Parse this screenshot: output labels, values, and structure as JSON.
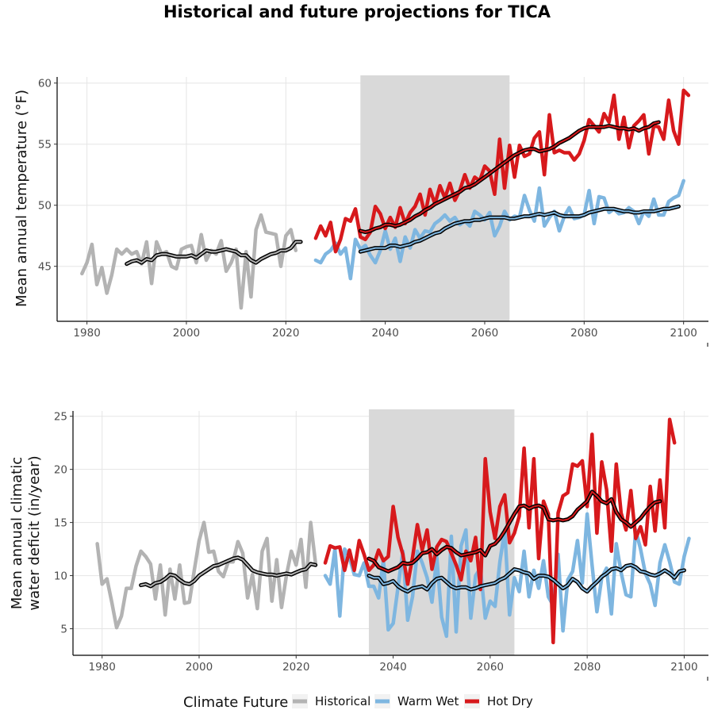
{
  "title": "Historical and future projections for TICA",
  "legend": {
    "title": "Climate Future",
    "items": [
      {
        "label": "Historical",
        "color": "#b3b3b3"
      },
      {
        "label": "Warm Wet",
        "color": "#7eb6e0"
      },
      {
        "label": "Hot Dry",
        "color": "#d7191c"
      }
    ]
  },
  "colors": {
    "historical": "#b3b3b3",
    "warm_wet": "#7eb6e0",
    "hot_dry": "#d7191c",
    "smooth_outline": "#000000",
    "shaded_period": "#d9d9d9",
    "grid": "#e5e5e5"
  },
  "chart_data": [
    {
      "type": "line",
      "ylabel": "Mean annual temperature (°F)",
      "xlabel": "",
      "xlim": [
        1974,
        2105
      ],
      "ylim": [
        40.5,
        60.5
      ],
      "xticks": [
        1980,
        2000,
        2020,
        2040,
        2060,
        2080,
        2100
      ],
      "yticks": [
        45,
        50,
        55,
        60
      ],
      "shaded_period": [
        2035,
        2065
      ],
      "grid": true,
      "legend_position": "bottom",
      "series": [
        {
          "name": "Historical",
          "x_start": 1979,
          "values": [
            44.4,
            45.3,
            46.8,
            43.5,
            44.9,
            42.8,
            44.3,
            46.4,
            46.0,
            46.4,
            46.0,
            46.2,
            45.2,
            47.0,
            43.6,
            47.0,
            46.0,
            46.2,
            45.0,
            44.8,
            46.4,
            46.6,
            46.7,
            45.3,
            47.6,
            45.5,
            46.3,
            46.0,
            47.1,
            44.6,
            45.3,
            46.4,
            41.6,
            46.2,
            42.5,
            48.0,
            49.2,
            47.8,
            47.7,
            47.6,
            45.0,
            47.5,
            48.0,
            46.3
          ]
        },
        {
          "name": "Historical 10-yr mean",
          "x_start": 1988,
          "values": [
            45.2,
            45.4,
            45.5,
            45.3,
            45.6,
            45.5,
            45.9,
            46.0,
            46.0,
            45.9,
            45.8,
            45.8,
            45.8,
            45.9,
            45.7,
            46.0,
            46.3,
            46.2,
            46.2,
            46.3,
            46.4,
            46.3,
            46.2,
            45.9,
            45.9,
            45.5,
            45.3,
            45.6,
            45.8,
            46.0,
            46.1,
            46.3,
            46.3,
            46.5,
            47.0,
            47.0
          ]
        },
        {
          "name": "Warm Wet",
          "x_start": 2026,
          "values": [
            45.5,
            45.3,
            46.0,
            46.3,
            46.9,
            46.0,
            46.5,
            44.0,
            47.2,
            46.4,
            46.7,
            45.9,
            45.3,
            46.3,
            47.9,
            46.4,
            47.3,
            45.4,
            47.4,
            46.5,
            48.0,
            47.3,
            47.9,
            47.8,
            48.5,
            48.8,
            49.2,
            48.7,
            49.0,
            48.4,
            48.7,
            48.3,
            49.5,
            49.2,
            48.8,
            49.4,
            47.5,
            48.3,
            49.5,
            48.8,
            49.1,
            49.0,
            50.8,
            49.6,
            48.7,
            51.4,
            48.3,
            49.0,
            49.5,
            47.9,
            49.1,
            49.8,
            48.9,
            49.0,
            49.2,
            51.2,
            48.5,
            50.7,
            50.6,
            49.4,
            49.7,
            49.3,
            49.4,
            49.8,
            49.5,
            48.5,
            49.5,
            49.1,
            50.5,
            49.2,
            49.2,
            50.3,
            50.6,
            50.8,
            52.0
          ]
        },
        {
          "name": "Hot Dry",
          "x_start": 2026,
          "values": [
            47.3,
            48.3,
            47.5,
            48.6,
            46.2,
            47.2,
            48.9,
            48.7,
            49.7,
            47.4,
            47.2,
            47.8,
            49.9,
            49.3,
            48.1,
            49.0,
            48.2,
            49.8,
            48.5,
            49.4,
            49.9,
            50.9,
            49.2,
            51.3,
            50.1,
            51.6,
            50.6,
            51.8,
            50.4,
            51.2,
            52.5,
            51.4,
            52.3,
            52.0,
            53.2,
            52.8,
            50.9,
            55.4,
            51.4,
            54.9,
            52.3,
            54.9,
            54.0,
            54.2,
            55.5,
            56.0,
            52.5,
            57.4,
            54.3,
            54.5,
            54.3,
            54.3,
            53.7,
            54.2,
            55.3,
            57.0,
            56.5,
            56.0,
            57.5,
            56.8,
            59.0,
            55.4,
            57.2,
            54.7,
            56.5,
            56.9,
            57.4,
            54.2,
            56.5,
            56.4,
            55.4,
            58.6,
            56.1,
            55.0,
            59.4,
            59.0
          ]
        },
        {
          "name": "Warm Wet 10-yr mean",
          "x_start": 2035,
          "values": [
            46.2,
            46.3,
            46.4,
            46.5,
            46.5,
            46.5,
            46.7,
            46.7,
            46.6,
            46.7,
            46.8,
            47.0,
            47.1,
            47.3,
            47.5,
            47.7,
            47.8,
            48.1,
            48.3,
            48.5,
            48.6,
            48.7,
            48.7,
            48.8,
            48.8,
            48.9,
            49.0,
            49.0,
            49.0,
            49.0,
            48.9,
            48.9,
            49.0,
            49.1,
            49.1,
            49.2,
            49.3,
            49.2,
            49.3,
            49.4,
            49.2,
            49.1,
            49.1,
            49.1,
            49.1,
            49.2,
            49.4,
            49.5,
            49.6,
            49.7,
            49.7,
            49.7,
            49.6,
            49.5,
            49.5,
            49.4,
            49.4,
            49.5,
            49.5,
            49.5,
            49.6,
            49.7,
            49.7,
            49.8,
            49.9
          ]
        },
        {
          "name": "Hot Dry 10-yr mean",
          "x_start": 2035,
          "values": [
            47.9,
            47.8,
            47.9,
            48.1,
            48.2,
            48.4,
            48.4,
            48.3,
            48.4,
            48.6,
            48.8,
            49.1,
            49.3,
            49.6,
            49.8,
            50.1,
            50.3,
            50.5,
            50.7,
            50.9,
            51.1,
            51.4,
            51.5,
            51.7,
            52.0,
            52.3,
            52.6,
            52.9,
            53.2,
            53.5,
            53.8,
            54.1,
            54.3,
            54.5,
            54.6,
            54.6,
            54.4,
            54.5,
            54.6,
            54.8,
            55.1,
            55.3,
            55.5,
            55.8,
            56.1,
            56.3,
            56.4,
            56.4,
            56.4,
            56.4,
            56.5,
            56.4,
            56.3,
            56.3,
            56.2,
            56.3,
            56.1,
            56.3,
            56.4,
            56.7,
            56.8
          ]
        }
      ]
    },
    {
      "type": "line",
      "ylabel": "Mean annual climatic water deficit (in/year)",
      "xlabel": "",
      "xlim": [
        1974,
        2105
      ],
      "ylim": [
        2.5,
        25.5
      ],
      "xticks": [
        1980,
        2000,
        2020,
        2040,
        2060,
        2080,
        2100
      ],
      "yticks": [
        5,
        10,
        15,
        20,
        25
      ],
      "shaded_period": [
        2035,
        2065
      ],
      "grid": true,
      "legend_position": "bottom",
      "series": [
        {
          "name": "Historical",
          "x_start": 1979,
          "values": [
            13.0,
            9.2,
            9.7,
            7.5,
            5.1,
            6.2,
            8.8,
            8.8,
            10.9,
            12.3,
            11.8,
            11.1,
            7.8,
            11.0,
            6.3,
            10.6,
            7.8,
            11.0,
            7.4,
            7.5,
            10.5,
            13.3,
            15.0,
            12.2,
            12.3,
            10.4,
            9.9,
            11.3,
            11.3,
            13.2,
            12.1,
            7.9,
            10.1,
            6.9,
            12.3,
            13.5,
            7.6,
            11.5,
            7.0,
            10.0,
            12.3,
            11.0,
            13.4,
            8.9,
            15.0,
            11.2
          ]
        },
        {
          "name": "Historical 10-yr mean",
          "x_start": 1988,
          "values": [
            9.1,
            9.2,
            9.0,
            9.3,
            9.4,
            9.7,
            10.1,
            10.0,
            9.6,
            9.3,
            9.2,
            9.5,
            10.0,
            10.3,
            10.6,
            10.9,
            11.0,
            11.2,
            11.4,
            11.6,
            11.7,
            11.5,
            11.0,
            10.5,
            10.3,
            10.2,
            10.1,
            10.1,
            10.0,
            10.1,
            10.2,
            10.1,
            10.3,
            10.5,
            10.6,
            11.1,
            11.0
          ]
        },
        {
          "name": "Warm Wet",
          "x_start": 2026,
          "values": [
            10.0,
            9.2,
            12.5,
            6.2,
            12.5,
            11.7,
            10.1,
            10.0,
            11.2,
            9.0,
            9.0,
            7.9,
            11.5,
            4.9,
            5.5,
            8.9,
            12.3,
            5.8,
            8.0,
            12.3,
            11.2,
            9.8,
            7.5,
            11.7,
            6.1,
            4.3,
            13.7,
            4.7,
            12.8,
            14.3,
            6.0,
            10.0,
            10.7,
            6.0,
            7.6,
            7.1,
            11.3,
            14.3,
            6.3,
            9.8,
            8.5,
            12.3,
            8.0,
            10.5,
            8.8,
            11.4,
            8.0,
            7.2,
            12.0,
            4.8,
            9.6,
            10.4,
            13.3,
            9.3,
            15.8,
            11.0,
            6.6,
            9.8,
            10.7,
            6.4,
            13.0,
            10.3,
            8.2,
            8.0,
            14.3,
            12.5,
            10.2,
            9.2,
            7.2,
            11.2,
            12.9,
            11.3,
            9.4,
            9.2,
            11.8,
            13.5
          ]
        },
        {
          "name": "Hot Dry",
          "x_start": 2026,
          "values": [
            11.2,
            12.8,
            12.6,
            12.7,
            10.5,
            12.4,
            10.5,
            13.3,
            12.0,
            10.5,
            11.0,
            12.4,
            11.4,
            11.8,
            16.5,
            13.6,
            12.0,
            9.2,
            11.7,
            14.8,
            12.4,
            14.3,
            10.6,
            12.7,
            13.4,
            13.2,
            12.1,
            11.0,
            9.6,
            12.3,
            11.4,
            13.6,
            8.7,
            21.0,
            16.0,
            13.5,
            16.5,
            17.6,
            13.1,
            14.0,
            15.6,
            22.0,
            14.5,
            21.0,
            11.6,
            17.0,
            15.8,
            3.7,
            15.9,
            17.5,
            17.8,
            20.5,
            20.3,
            20.8,
            16.5,
            23.3,
            14.0,
            20.7,
            18.1,
            12.3,
            20.5,
            15.9,
            14.3,
            18.0,
            13.5,
            14.6,
            12.9,
            18.4,
            14.2,
            19.0,
            14.5,
            24.7,
            22.5
          ]
        },
        {
          "name": "Warm Wet 10-yr mean",
          "x_start": 2035,
          "values": [
            10.0,
            9.8,
            9.8,
            9.2,
            9.3,
            9.5,
            9.0,
            8.7,
            8.5,
            8.8,
            8.9,
            9.0,
            8.7,
            9.3,
            9.7,
            9.8,
            9.4,
            9.0,
            8.8,
            8.9,
            8.9,
            8.7,
            8.8,
            9.0,
            9.1,
            9.2,
            9.3,
            9.6,
            9.8,
            10.2,
            10.6,
            10.5,
            10.3,
            10.2,
            9.7,
            10.0,
            10.0,
            9.9,
            9.6,
            9.2,
            8.8,
            9.1,
            9.7,
            9.4,
            8.8,
            8.5,
            9.0,
            9.4,
            9.9,
            10.2,
            10.6,
            10.7,
            10.5,
            10.9,
            11.0,
            10.8,
            10.4,
            10.3,
            10.1,
            10.0,
            10.2,
            10.5,
            10.2,
            9.8,
            10.4,
            10.5
          ]
        },
        {
          "name": "Hot Dry 10-yr mean",
          "x_start": 2035,
          "values": [
            11.6,
            11.4,
            10.8,
            10.6,
            10.4,
            10.6,
            10.8,
            11.2,
            11.1,
            11.2,
            11.6,
            12.1,
            12.2,
            12.5,
            12.0,
            12.4,
            12.7,
            12.6,
            12.2,
            11.9,
            12.0,
            12.1,
            12.2,
            12.4,
            11.9,
            12.8,
            13.0,
            13.5,
            14.2,
            15.0,
            15.8,
            16.5,
            16.6,
            16.3,
            16.5,
            16.6,
            16.4,
            15.3,
            15.2,
            15.3,
            15.2,
            15.3,
            15.6,
            16.2,
            16.6,
            17.0,
            17.9,
            17.5,
            17.0,
            16.8,
            17.2,
            16.0,
            15.3,
            15.0,
            14.6,
            15.0,
            15.4,
            16.0,
            16.5,
            16.9,
            17.0
          ]
        }
      ]
    }
  ]
}
